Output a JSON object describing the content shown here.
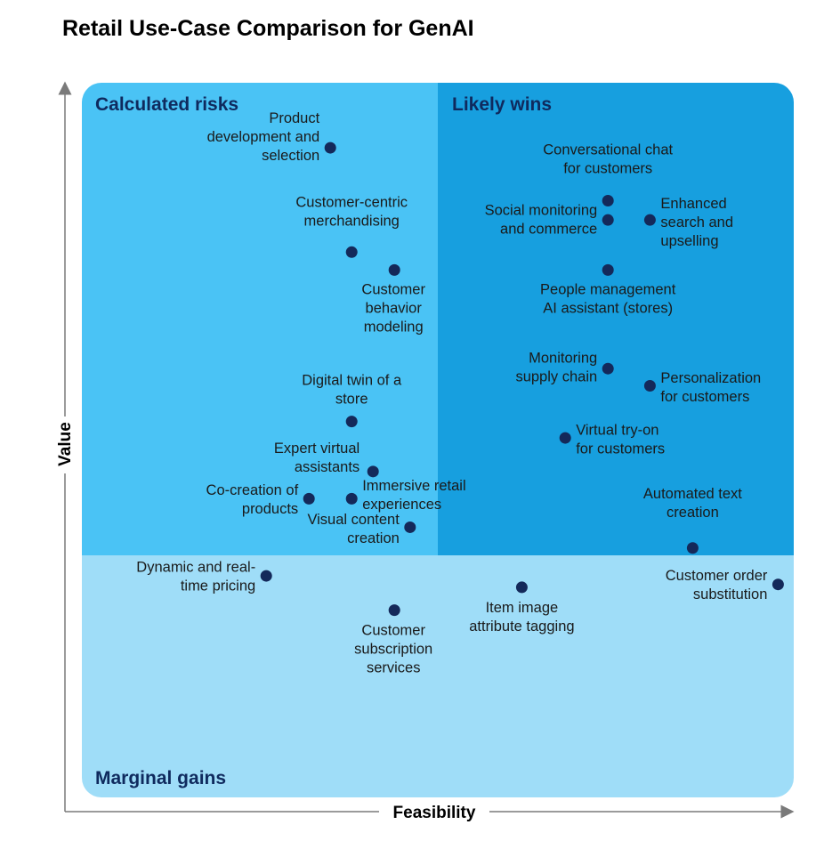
{
  "title": "Retail Use-Case Comparison for GenAI",
  "colors": {
    "calculated_risks": "#4ac3f5",
    "likely_wins": "#179fdf",
    "marginal_gains": "#9fddf8",
    "dot": "#14295a",
    "zone_text": "#0f2a5e"
  },
  "chart_data": {
    "type": "scatter",
    "title": "Retail Use-Case Comparison for GenAI",
    "xlabel": "Feasibility",
    "ylabel": "Value",
    "xlim": [
      0,
      100
    ],
    "ylim": [
      0,
      100
    ],
    "grid": false,
    "quadrants": [
      {
        "name": "Calculated risks",
        "x_range": [
          0,
          50
        ],
        "y_range": [
          34,
          100
        ],
        "color": "#4ac3f5"
      },
      {
        "name": "Likely wins",
        "x_range": [
          50,
          100
        ],
        "y_range": [
          34,
          100
        ],
        "color": "#179fdf"
      },
      {
        "name": "Marginal gains",
        "x_range": [
          0,
          100
        ],
        "y_range": [
          0,
          34
        ],
        "color": "#9fddf8"
      }
    ],
    "points": [
      {
        "label": "Product development and selection",
        "x": 34.9,
        "y": 90.9,
        "lines": [
          "Product",
          "development and",
          "selection"
        ]
      },
      {
        "label": "Customer-centric merchandising",
        "x": 37.9,
        "y": 76.3,
        "lines": [
          "Customer-centric",
          "merchandising"
        ]
      },
      {
        "label": "Customer behavior modeling",
        "x": 43.9,
        "y": 73.8,
        "lines": [
          "Customer",
          "behavior",
          "modeling"
        ]
      },
      {
        "label": "Digital twin of a store",
        "x": 37.9,
        "y": 52.6,
        "lines": [
          "Digital twin of a",
          "store"
        ]
      },
      {
        "label": "Expert virtual assistants",
        "x": 40.9,
        "y": 45.6,
        "lines": [
          "Expert virtual",
          "assistants"
        ]
      },
      {
        "label": "Co-creation of products",
        "x": 31.9,
        "y": 41.8,
        "lines": [
          "Co-creation of",
          "products"
        ]
      },
      {
        "label": "Immersive retail experiences",
        "x": 37.9,
        "y": 41.8,
        "lines": [
          "Immersive retail",
          "experiences"
        ]
      },
      {
        "label": "Visual content creation",
        "x": 46.1,
        "y": 37.8,
        "lines": [
          "Visual content",
          "creation"
        ]
      },
      {
        "label": "Conversational chat for customers",
        "x": 73.9,
        "y": 83.5,
        "lines": [
          "Conversational chat",
          "for customers"
        ]
      },
      {
        "label": "Social monitoring and commerce",
        "x": 73.9,
        "y": 80.8,
        "lines": [
          "Social monitoring",
          "and commerce"
        ]
      },
      {
        "label": "Enhanced search and upselling",
        "x": 79.8,
        "y": 80.8,
        "lines": [
          "Enhanced",
          "search and",
          "upselling"
        ]
      },
      {
        "label": "People management AI assistant (stores)",
        "x": 73.9,
        "y": 73.8,
        "lines": [
          "People management",
          "AI assistant (stores)"
        ]
      },
      {
        "label": "Monitoring supply chain",
        "x": 73.9,
        "y": 60.0,
        "lines": [
          "Monitoring",
          "supply chain"
        ]
      },
      {
        "label": "Personalization for customers",
        "x": 79.8,
        "y": 57.6,
        "lines": [
          "Personalization",
          "for customers"
        ]
      },
      {
        "label": "Virtual try-on for customers",
        "x": 67.9,
        "y": 50.3,
        "lines": [
          "Virtual try-on",
          "for customers"
        ]
      },
      {
        "label": "Automated text creation",
        "x": 85.8,
        "y": 34.9,
        "lines": [
          "Automated text",
          "creation"
        ]
      },
      {
        "label": "Dynamic and real-time pricing",
        "x": 25.9,
        "y": 31.0,
        "lines": [
          "Dynamic and real-",
          "time pricing"
        ]
      },
      {
        "label": "Customer subscription services",
        "x": 43.9,
        "y": 26.2,
        "lines": [
          "Customer",
          "subscription",
          "services"
        ]
      },
      {
        "label": "Item image attribute tagging",
        "x": 61.8,
        "y": 29.4,
        "lines": [
          "Item image",
          "attribute tagging"
        ]
      },
      {
        "label": "Customer order substitution",
        "x": 97.8,
        "y": 29.8,
        "lines": [
          "Customer order",
          "substitution"
        ]
      }
    ]
  }
}
